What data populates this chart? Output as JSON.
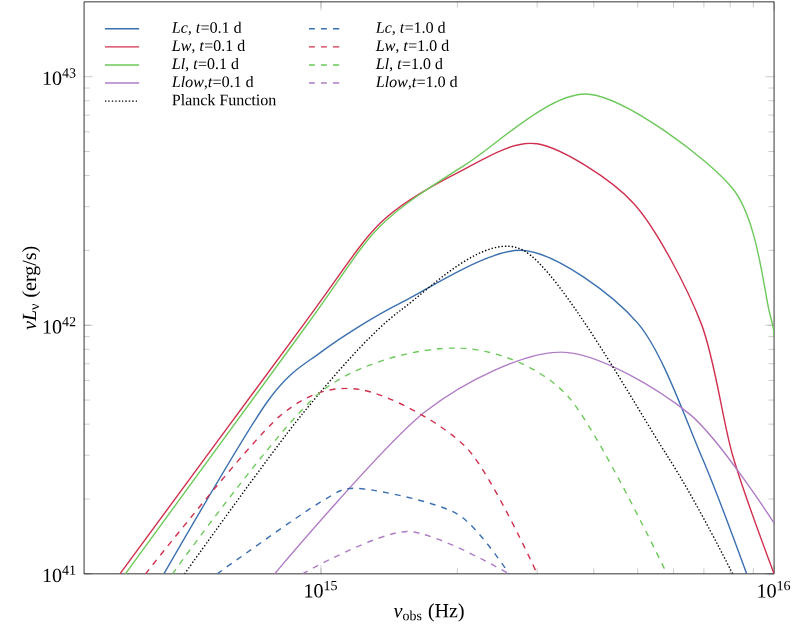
{
  "chart_data": {
    "type": "line",
    "xlabel": "*ν*$_{obs}$ (Hz)",
    "ylabel": "*νL*$_{ν}$ (erg/s)",
    "log": "xy",
    "xlim": [
      300000000000000.0,
      1e+16
    ],
    "ylim": [
      1e+41,
      2e+43
    ],
    "xticks": [
      {
        "value": 1000000000000000.0,
        "label": "10$^{15}$"
      },
      {
        "value": 1e+16,
        "label": "10$^{16}$"
      }
    ],
    "yticks": [
      {
        "value": 1e+41,
        "label": "10$^{41}$"
      },
      {
        "value": 1e+42,
        "label": "10$^{42}$"
      },
      {
        "value": 1e+43,
        "label": "10$^{43}$"
      }
    ],
    "legend": "top left",
    "marker": "none",
    "series": [
      {
        "name": "*Lc*, *t*=0.1 d",
        "color": "#3a6fb0",
        "line_style": "solid",
        "x": [
          450000000000000.0,
          760000000000000.0,
          1000000000000000.0,
          1500000000000000.0,
          2800000000000000.0,
          5000000000000000.0,
          6900000000000000.0,
          8700000000000000.0
        ],
        "values": [
          1e+41,
          4.9e+41,
          7.8e+41,
          1.23e+42,
          2e+42,
          1.02e+42,
          3e+41,
          1e+41
        ]
      },
      {
        "name": "*Lw*, *t*=0.1 d",
        "color": "#d0304f",
        "line_style": "solid",
        "x": [
          360000000000000.0,
          920000000000000.0,
          1350000000000000.0,
          2000000000000000.0,
          3000000000000000.0,
          4900000000000000.0,
          6900000000000000.0,
          8100000000000000.0,
          1e+16
        ],
        "values": [
          1e+41,
          1.02e+42,
          2.57e+42,
          4.1e+42,
          5.37e+42,
          3.09e+42,
          1.02e+42,
          3e+41,
          1e+41
        ]
      },
      {
        "name": "*Ll*, *t*=0.1 d",
        "color": "#6cc95a",
        "line_style": "solid",
        "x": [
          370000000000000.0,
          930000000000000.0,
          1350000000000000.0,
          2100000000000000.0,
          3900000000000000.0,
          8100000000000000.0,
          9800000000000000.0,
          1e+16
        ],
        "values": [
          1e+41,
          1e+42,
          2.5e+42,
          4.47e+42,
          8.5e+42,
          3.55e+42,
          1.1e+42,
          8.9e+41
        ]
      },
      {
        "name": "*Llow*,*t*=0.1 d",
        "color": "#b07cc6",
        "line_style": "solid",
        "x": [
          790000000000000.0,
          1700000000000000.0,
          3400000000000000.0,
          6500000000000000.0,
          1e+16
        ],
        "values": [
          1e+41,
          4.5e+41,
          7.8e+41,
          4.4e+41,
          1.6e+41
        ]
      },
      {
        "name": "Planck Function",
        "color": "#000000",
        "line_style": "dotted",
        "x": [
          500000000000000.0,
          910000000000000.0,
          1500000000000000.0,
          2800000000000000.0,
          5800000000000000.0,
          8100000000000000.0
        ],
        "values": [
          1e+41,
          4.4e+41,
          1.15e+42,
          2e+42,
          3e+41,
          1e+41
        ]
      },
      {
        "name": "*Lc*, *t*=1.0 d",
        "color": "#3a6fb0",
        "line_style": "dashed",
        "x": [
          590000000000000.0,
          1000000000000000.0,
          1230000000000000.0,
          2000000000000000.0,
          2600000000000000.0
        ],
        "values": [
          1e+41,
          1.95e+41,
          2.2e+41,
          1.74e+41,
          1e+41
        ]
      },
      {
        "name": "*Lw*, *t*=1.0 d",
        "color": "#d0304f",
        "line_style": "dashed",
        "x": [
          410000000000000.0,
          810000000000000.0,
          1230000000000000.0,
          2100000000000000.0,
          3000000000000000.0
        ],
        "values": [
          1e+41,
          4.3e+41,
          5.5e+41,
          3.2e+41,
          1e+41
        ]
      },
      {
        "name": "*Ll*, *t*=1.0 d",
        "color": "#6cc95a",
        "line_style": "dashed",
        "x": [
          470000000000000.0,
          1000000000000000.0,
          2000000000000000.0,
          3500000000000000.0,
          5800000000000000.0
        ],
        "values": [
          1e+41,
          5.4e+41,
          8.1e+41,
          5.2e+41,
          1e+41
        ]
      },
      {
        "name": "*Llow*,*t*=1.0 d",
        "color": "#b07cc6",
        "line_style": "dashed",
        "x": [
          910000000000000.0,
          1550000000000000.0,
          2600000000000000.0
        ],
        "values": [
          1e+41,
          1.48e+41,
          1e+41
        ]
      }
    ]
  }
}
